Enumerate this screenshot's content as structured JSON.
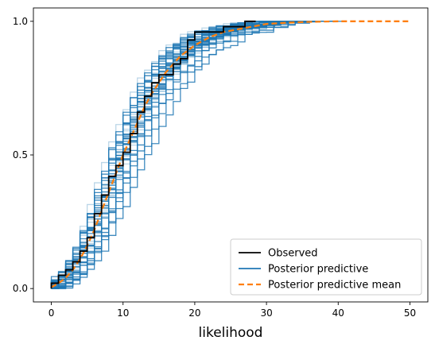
{
  "chart_data": {
    "type": "line",
    "title": "",
    "xlabel": "likelihood",
    "ylabel": "",
    "xlim": [
      -2.5,
      52.5
    ],
    "ylim": [
      -0.05,
      1.05
    ],
    "x_ticks": [
      0,
      10,
      20,
      30,
      40,
      50
    ],
    "x_tick_labels": [
      "0",
      "10",
      "20",
      "30",
      "40",
      "50"
    ],
    "y_ticks": [
      0.0,
      0.5,
      1.0
    ],
    "y_tick_labels": [
      "0.0",
      "0.5",
      "1.0"
    ],
    "grid": false,
    "legend_position": "bottom-right",
    "colors": {
      "observed": "#000000",
      "posterior_predictive": "#1f77b4",
      "posterior_predictive_mean": "#ff7f0e"
    },
    "series": [
      {
        "name": "Observed",
        "style": "solid-step",
        "points": [
          [
            0,
            0.0
          ],
          [
            0,
            0.02
          ],
          [
            1,
            0.02
          ],
          [
            1,
            0.05
          ],
          [
            2,
            0.05
          ],
          [
            2,
            0.07
          ],
          [
            3,
            0.07
          ],
          [
            3,
            0.1
          ],
          [
            4,
            0.1
          ],
          [
            4,
            0.14
          ],
          [
            5,
            0.14
          ],
          [
            5,
            0.19
          ],
          [
            6,
            0.19
          ],
          [
            6,
            0.28
          ],
          [
            7,
            0.28
          ],
          [
            7,
            0.35
          ],
          [
            8,
            0.35
          ],
          [
            8,
            0.42
          ],
          [
            9,
            0.42
          ],
          [
            9,
            0.46
          ],
          [
            10,
            0.46
          ],
          [
            10,
            0.51
          ],
          [
            11,
            0.51
          ],
          [
            11,
            0.58
          ],
          [
            12,
            0.58
          ],
          [
            12,
            0.66
          ],
          [
            13,
            0.66
          ],
          [
            13,
            0.72
          ],
          [
            14,
            0.72
          ],
          [
            14,
            0.77
          ],
          [
            15,
            0.77
          ],
          [
            15,
            0.8
          ],
          [
            17,
            0.8
          ],
          [
            17,
            0.84
          ],
          [
            18,
            0.84
          ],
          [
            18,
            0.86
          ],
          [
            19,
            0.86
          ],
          [
            19,
            0.93
          ],
          [
            20,
            0.93
          ],
          [
            20,
            0.96
          ],
          [
            24,
            0.96
          ],
          [
            24,
            0.98
          ],
          [
            27,
            0.98
          ],
          [
            27,
            1.0
          ],
          [
            28.5,
            1.0
          ]
        ]
      },
      {
        "name": "Posterior predictive",
        "style": "solid-step-ensemble",
        "mean_step_points": [
          [
            0,
            0.0
          ],
          [
            1,
            0.02
          ],
          [
            2,
            0.04
          ],
          [
            3,
            0.07
          ],
          [
            4,
            0.11
          ],
          [
            5,
            0.16
          ],
          [
            6,
            0.22
          ],
          [
            7,
            0.29
          ],
          [
            8,
            0.36
          ],
          [
            9,
            0.43
          ],
          [
            10,
            0.5
          ],
          [
            11,
            0.56
          ],
          [
            12,
            0.62
          ],
          [
            13,
            0.68
          ],
          [
            14,
            0.73
          ],
          [
            15,
            0.77
          ],
          [
            16,
            0.81
          ],
          [
            17,
            0.84
          ],
          [
            18,
            0.87
          ],
          [
            19,
            0.89
          ],
          [
            20,
            0.91
          ],
          [
            22,
            0.94
          ],
          [
            24,
            0.96
          ],
          [
            26,
            0.97
          ],
          [
            28,
            0.98
          ],
          [
            30,
            0.99
          ],
          [
            33,
            0.995
          ],
          [
            36,
            1.0
          ],
          [
            40,
            1.0
          ]
        ]
      },
      {
        "name": "Posterior predictive mean",
        "style": "dashed",
        "points": [
          [
            0,
            0.005
          ],
          [
            1,
            0.02
          ],
          [
            2,
            0.04
          ],
          [
            3,
            0.07
          ],
          [
            4,
            0.11
          ],
          [
            5,
            0.16
          ],
          [
            6,
            0.22
          ],
          [
            7,
            0.29
          ],
          [
            8,
            0.36
          ],
          [
            9,
            0.43
          ],
          [
            10,
            0.5
          ],
          [
            11,
            0.56
          ],
          [
            12,
            0.62
          ],
          [
            13,
            0.68
          ],
          [
            14,
            0.73
          ],
          [
            15,
            0.77
          ],
          [
            16,
            0.81
          ],
          [
            17,
            0.84
          ],
          [
            18,
            0.87
          ],
          [
            19,
            0.89
          ],
          [
            20,
            0.91
          ],
          [
            22,
            0.94
          ],
          [
            24,
            0.96
          ],
          [
            26,
            0.97
          ],
          [
            28,
            0.98
          ],
          [
            30,
            0.99
          ],
          [
            33,
            0.995
          ],
          [
            36,
            0.998
          ],
          [
            40,
            1.0
          ],
          [
            45,
            1.0
          ],
          [
            50,
            1.0
          ]
        ]
      }
    ]
  },
  "legend": {
    "items": [
      {
        "label": "Observed",
        "color": "#000000",
        "style": "solid"
      },
      {
        "label": "Posterior predictive",
        "color": "#1f77b4",
        "style": "solid"
      },
      {
        "label": "Posterior predictive mean",
        "color": "#ff7f0e",
        "style": "dashed"
      }
    ]
  }
}
